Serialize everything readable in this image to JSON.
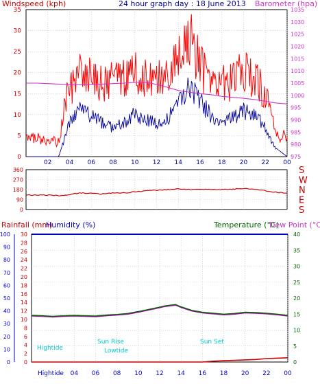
{
  "header": {
    "windspeed_label": "Windspeed (kph)",
    "title": "24 hour graph day : 18 June 2013",
    "barometer_label": "Barometer (hpa)"
  },
  "footer": {
    "rainfall_label": "Rainfall (mm)",
    "humidity_label": "Humidity (%)",
    "temperature_label": "Temperature (°C)",
    "dewpoint_label": "Dew Point (°C)"
  },
  "annotations": {
    "hightide_1": "Hightide",
    "sunrise": "Sun Rise",
    "lowtide": "Lowtide",
    "sunset": "Sun Set",
    "hightide_axis": "Hightide"
  },
  "colors": {
    "background": "#ffffff",
    "frame": "#000000",
    "grid": "#bbbbbb",
    "wind_gust": "#ff0000",
    "wind_avg": "#000099",
    "barometer": "#cc33cc",
    "direction": "#cc0000",
    "rainfall": "#cc0000",
    "humidity": "#0000cc",
    "temperature": "#006600",
    "dewpoint": "#aa00aa",
    "tide_text": "#00cccc"
  },
  "chart_data": [
    {
      "type": "line",
      "panel": "wind_barometer",
      "x_ticks": [
        "02",
        "04",
        "06",
        "08",
        "10",
        "12",
        "14",
        "16",
        "18",
        "20",
        "22",
        "00"
      ],
      "y_left": {
        "label": "Windspeed (kph)",
        "ticks": [
          "0",
          "5",
          "10",
          "15",
          "20",
          "25",
          "30",
          "35"
        ],
        "ylim": [
          0,
          35
        ]
      },
      "y_right": {
        "label": "Barometer (hpa)",
        "ticks": [
          "975",
          "980",
          "985",
          "990",
          "995",
          "1000",
          "1005",
          "1010",
          "1015",
          "1020",
          "1025",
          "1030",
          "1035"
        ],
        "ylim": [
          975,
          1035
        ]
      },
      "grid": true,
      "hours": [
        0,
        1,
        2,
        3,
        3.5,
        4,
        4.5,
        5,
        6,
        7,
        8,
        9,
        10,
        11,
        12,
        13,
        14,
        14.5,
        15,
        15.5,
        16,
        17,
        18,
        19,
        20,
        21,
        22,
        22.5,
        23,
        24
      ],
      "series": [
        {
          "name": "Gust",
          "axis": "left",
          "values": [
            3,
            3,
            2,
            2,
            12,
            16,
            18,
            20,
            19,
            17,
            18,
            19,
            20,
            19,
            18,
            19,
            22,
            26,
            28,
            25,
            22,
            18,
            17,
            18,
            20,
            19,
            15,
            10,
            5,
            3
          ]
        },
        {
          "name": "Average",
          "axis": "left",
          "values": [
            0,
            0,
            0,
            0,
            4,
            8,
            10,
            12,
            10,
            8,
            7,
            8,
            10,
            9,
            8,
            9,
            12,
            15,
            17,
            15,
            13,
            10,
            8,
            9,
            11,
            10,
            7,
            4,
            2,
            0
          ]
        },
        {
          "name": "Barometer",
          "axis": "right",
          "values": [
            1005,
            1005,
            1004.8,
            1004.6,
            1004.5,
            1004.4,
            1004.4,
            1004.3,
            1004.4,
            1004.6,
            1004.8,
            1005,
            1005.3,
            1005.3,
            1004.5,
            1003.3,
            1002,
            1001.6,
            1001.3,
            1001,
            1000.7,
            1000.3,
            999.6,
            999.2,
            998.8,
            998.3,
            997.6,
            997.2,
            996.9,
            996.5
          ]
        }
      ]
    },
    {
      "type": "line",
      "panel": "wind_direction",
      "y_left": {
        "ticks": [
          "0",
          "90",
          "180",
          "270",
          "360"
        ],
        "ylim": [
          0,
          360
        ]
      },
      "y_right": {
        "ticks": [
          "S",
          "E",
          "N",
          "W",
          "S"
        ]
      },
      "grid": true,
      "hours": [
        0,
        2,
        3,
        4,
        5,
        6,
        7,
        8,
        9,
        10,
        12,
        14,
        15,
        16,
        18,
        20,
        21,
        22,
        23,
        24
      ],
      "series": [
        {
          "name": "Direction",
          "values": [
            130,
            130,
            125,
            135,
            150,
            145,
            140,
            150,
            150,
            160,
            175,
            185,
            180,
            185,
            180,
            190,
            185,
            170,
            155,
            150
          ]
        }
      ]
    },
    {
      "type": "line",
      "panel": "rain_humidity_temperature",
      "x_ticks": [
        "04",
        "06",
        "08",
        "10",
        "12",
        "14",
        "16",
        "18",
        "20",
        "22",
        "00"
      ],
      "y_left_rain": {
        "label": "Rainfall (mm)",
        "ticks": [
          "0",
          "2",
          "4",
          "6",
          "8",
          "10",
          "12",
          "14",
          "16",
          "18",
          "20",
          "22",
          "24",
          "26",
          "28",
          "30"
        ],
        "ylim": [
          0,
          30
        ]
      },
      "y_left_humidity": {
        "label": "Humidity (%)",
        "ticks": [
          "0",
          "10",
          "20",
          "30",
          "40",
          "50",
          "60",
          "70",
          "80",
          "90",
          "100"
        ],
        "ylim": [
          0,
          100
        ]
      },
      "y_right": {
        "label": "Temperature (°C)",
        "ticks": [
          "0",
          "5",
          "10",
          "15",
          "20",
          "25",
          "30",
          "35",
          "40"
        ],
        "ylim": [
          0,
          40
        ]
      },
      "grid": true,
      "hours": [
        0,
        1,
        2,
        3,
        4,
        5,
        6,
        7,
        8,
        9,
        10,
        11,
        12,
        12.5,
        13,
        13.5,
        14,
        15,
        16,
        17,
        18,
        19,
        20,
        21,
        22,
        23,
        24
      ],
      "series": [
        {
          "name": "Humidity",
          "axis": "humidity",
          "values": [
            100,
            100,
            100,
            100,
            100,
            100,
            100,
            100,
            100,
            100,
            100,
            100,
            100,
            100,
            100,
            100,
            100,
            100,
            100,
            100,
            100,
            100,
            100,
            100,
            100,
            100,
            100
          ]
        },
        {
          "name": "Temperature",
          "axis": "right",
          "values": [
            14.6,
            14.5,
            14.3,
            14.5,
            14.6,
            14.5,
            14.4,
            14.7,
            14.9,
            15.2,
            15.8,
            16.5,
            17.2,
            17.6,
            17.8,
            18.0,
            17.3,
            16.2,
            15.6,
            15.3,
            15.0,
            15.2,
            15.6,
            15.5,
            15.3,
            15.0,
            14.6
          ]
        },
        {
          "name": "Dew Point",
          "axis": "right",
          "values": [
            14.4,
            14.3,
            14.1,
            14.3,
            14.4,
            14.3,
            14.2,
            14.5,
            14.7,
            15.0,
            15.6,
            16.3,
            17.0,
            17.4,
            17.6,
            17.8,
            17.1,
            16.0,
            15.4,
            15.1,
            14.8,
            15.0,
            15.4,
            15.3,
            15.1,
            14.8,
            14.4
          ]
        },
        {
          "name": "Rainfall",
          "axis": "rain",
          "values": [
            0,
            0,
            0,
            0,
            0,
            0,
            0,
            0,
            0,
            0,
            0,
            0,
            0,
            0,
            0,
            0,
            0,
            0,
            0,
            0.2,
            0.3,
            0.4,
            0.5,
            0.6,
            0.8,
            0.9,
            1.0
          ]
        }
      ]
    }
  ]
}
